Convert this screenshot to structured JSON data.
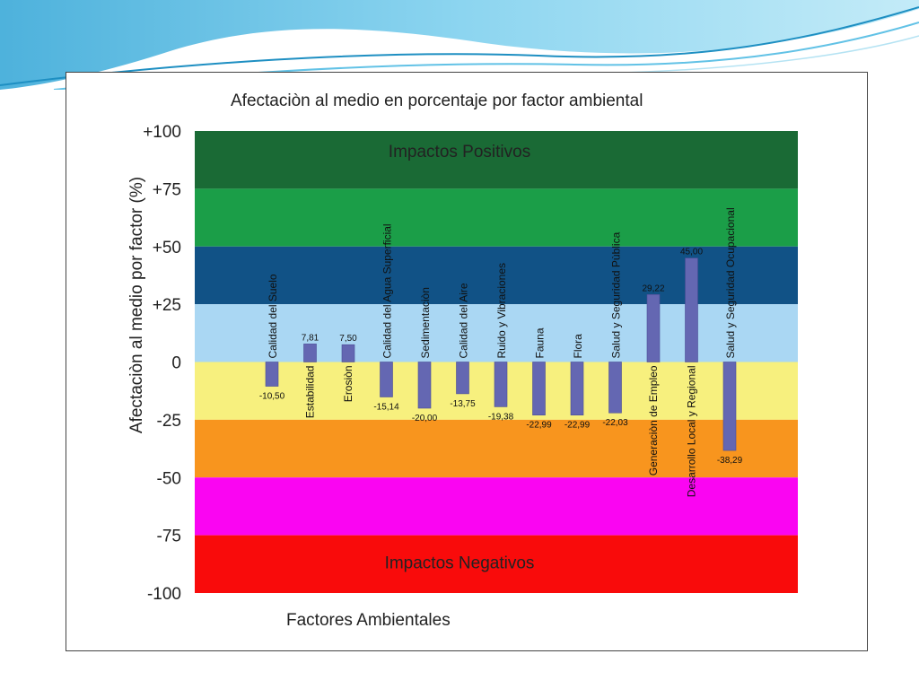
{
  "chart_data": {
    "type": "bar",
    "title": "Afectaciòn al medio en porcentaje por factor ambiental",
    "xlabel": "Factores Ambientales",
    "ylabel": "Afectaciòn al medio por factor (%)",
    "ylim": [
      -100,
      100
    ],
    "y_ticks": [
      {
        "value": 100,
        "label": "+100"
      },
      {
        "value": 75,
        "label": "+75"
      },
      {
        "value": 50,
        "label": "+50"
      },
      {
        "value": 25,
        "label": "+25"
      },
      {
        "value": 0,
        "label": "0"
      },
      {
        "value": -25,
        "label": "-25"
      },
      {
        "value": -50,
        "label": "-50"
      },
      {
        "value": -75,
        "label": "-75"
      },
      {
        "value": -100,
        "label": "-100"
      }
    ],
    "bands": [
      {
        "from": 75,
        "to": 100,
        "color": "#1a6a35"
      },
      {
        "from": 50,
        "to": 75,
        "color": "#1b9e48"
      },
      {
        "from": 25,
        "to": 50,
        "color": "#115286"
      },
      {
        "from": 0,
        "to": 25,
        "color": "#aad7f3"
      },
      {
        "from": -25,
        "to": 0,
        "color": "#f7f07e"
      },
      {
        "from": -50,
        "to": -25,
        "color": "#f8951e"
      },
      {
        "from": -75,
        "to": -50,
        "color": "#fa05f2"
      },
      {
        "from": -100,
        "to": -75,
        "color": "#f90b0b"
      }
    ],
    "band_labels": [
      {
        "text": "Impactos Positivos",
        "y": 91
      },
      {
        "text": "Impactos Negativos",
        "y": -87
      }
    ],
    "bar_color": "#6467b2",
    "categories": [
      "Calidad del Suelo",
      "Estabilidad",
      "Erosiòn",
      "Calidad del Agua Superficial",
      "Sedimentaciòn",
      "Calidad del Aire",
      "Ruido y Vibraciones",
      "Fauna",
      "Flora",
      "Salud y Seguridad Pùblica",
      "Generaciòn de Empleo",
      "Desarrollo Local y Regional",
      "Salud y Seguridad Ocupacional"
    ],
    "values": [
      -10.5,
      7.81,
      7.5,
      -15.14,
      -20.0,
      -13.75,
      -19.38,
      -22.99,
      -22.99,
      -22.03,
      29.22,
      45.0,
      -38.29
    ],
    "value_labels": [
      "-10,50",
      "7,81",
      "7,50",
      "-15,14",
      "-20,00",
      "-13,75",
      "-19,38",
      "-22,99",
      "-22,99",
      "-22,03",
      "29,22",
      "45,00",
      "-38,29"
    ]
  },
  "theme": {
    "frame_border": "#444444",
    "wave_colors": [
      "#4bb6dc",
      "#9fdcf0",
      "#1e8fc2"
    ]
  }
}
